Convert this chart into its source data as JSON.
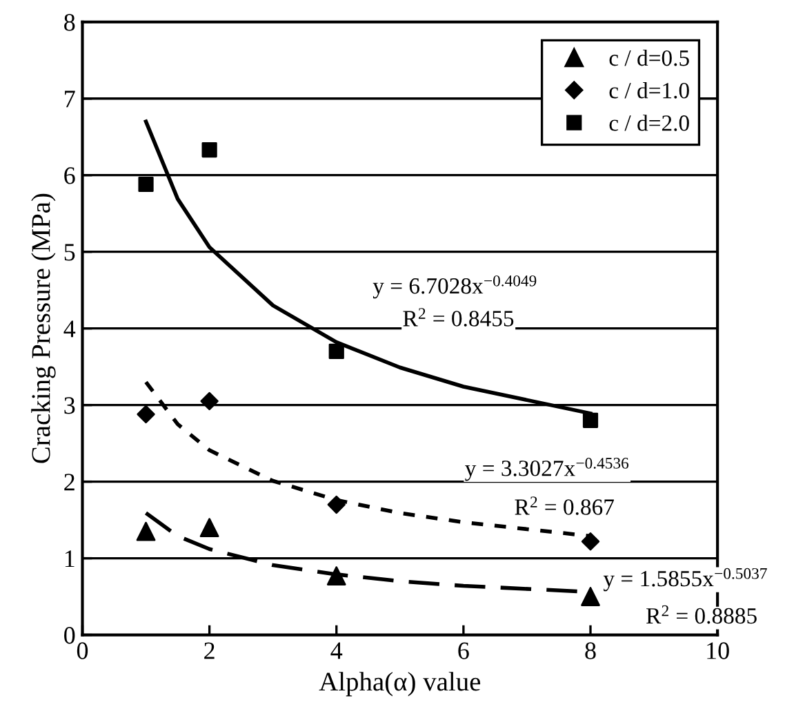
{
  "chart_data": {
    "type": "scatter",
    "xlabel": "Alpha(α) value",
    "ylabel": "Cracking Pressure (MPa)",
    "xlim": [
      0,
      10
    ],
    "ylim": [
      0,
      8
    ],
    "xticks": [
      0,
      2,
      4,
      6,
      8,
      10
    ],
    "yticks": [
      0,
      1,
      2,
      3,
      4,
      5,
      6,
      7,
      8
    ],
    "grid": "y",
    "legend": "top right",
    "series": [
      {
        "name": "c / d=0.5",
        "marker": "triangle",
        "color": "#000000",
        "x": [
          1,
          2,
          4,
          8
        ],
        "values": [
          1.35,
          1.4,
          0.77,
          0.5
        ]
      },
      {
        "name": "c / d=1.0",
        "marker": "diamond",
        "color": "#000000",
        "x": [
          1,
          2,
          4,
          8
        ],
        "values": [
          2.88,
          3.05,
          1.7,
          1.22
        ]
      },
      {
        "name": "c / d=2.0",
        "marker": "square",
        "color": "#000000",
        "x": [
          1,
          2,
          4,
          8
        ],
        "values": [
          5.88,
          6.33,
          3.7,
          2.8
        ]
      },
      {
        "type": "line",
        "line_style": "solid",
        "color": "#000000",
        "x": [
          1,
          1.5,
          2,
          3,
          4,
          5,
          6,
          8
        ],
        "values": [
          6.7,
          5.69,
          5.06,
          4.3,
          3.82,
          3.49,
          3.24,
          2.89
        ]
      },
      {
        "type": "line",
        "line_style": "dotted",
        "color": "#000000",
        "x": [
          1,
          1.5,
          2,
          3,
          4,
          5,
          6,
          8
        ],
        "values": [
          3.3,
          2.75,
          2.41,
          2.01,
          1.76,
          1.59,
          1.47,
          1.29
        ]
      },
      {
        "type": "line",
        "line_style": "dashed",
        "color": "#000000",
        "x": [
          1,
          1.5,
          2,
          3,
          4,
          5,
          6,
          8
        ],
        "values": [
          1.59,
          1.29,
          1.12,
          0.91,
          0.79,
          0.7,
          0.64,
          0.56
        ]
      }
    ],
    "annotations": [
      "y = 6.7028x$^{−0.4049}$",
      "R$^{2}$ = 0.8455",
      "y = 3.3027x$^{−0.4536}$",
      "R$^{2}$ = 0.867",
      "y = 1.5855x$^{−0.5037}$",
      "R$^{2}$ = 0.8885"
    ]
  }
}
